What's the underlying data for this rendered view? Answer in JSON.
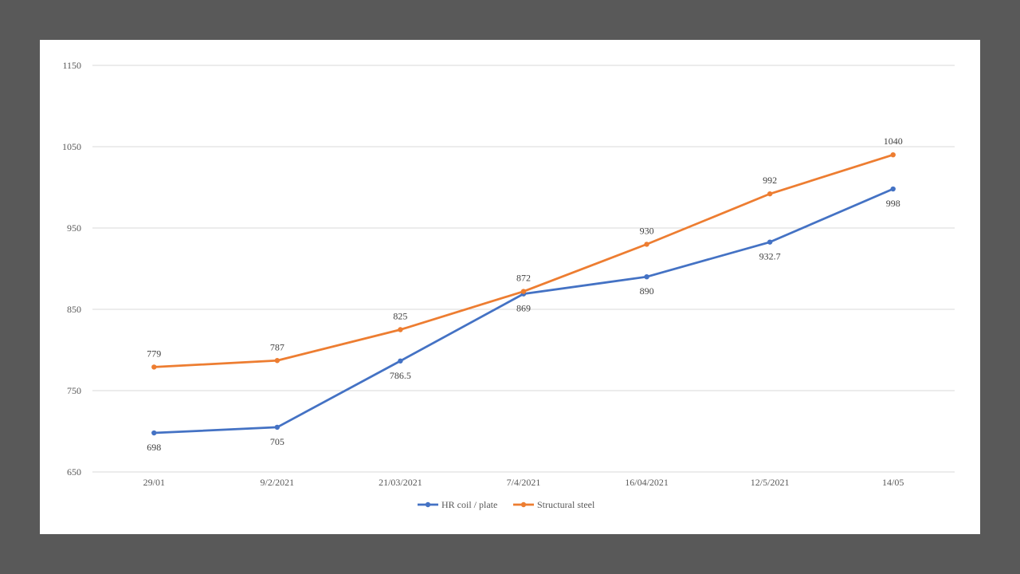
{
  "chart_data": {
    "type": "line",
    "title": "",
    "xlabel": "",
    "ylabel": "",
    "categories": [
      "29/01",
      "9/2/2021",
      "21/03/2021",
      "7/4/2021",
      "16/04/2021",
      "12/5/2021",
      "14/05"
    ],
    "ylim": [
      650,
      1150
    ],
    "yticks": [
      650,
      750,
      850,
      950,
      1050,
      1150
    ],
    "grid": true,
    "legend": "bottom",
    "series": [
      {
        "name": "HR coil / plate",
        "color": "#4472c4",
        "values": [
          698,
          705,
          786.5,
          869,
          890,
          932.7,
          998
        ],
        "labels": [
          "698",
          "705",
          "786.5",
          "869",
          "890",
          "932.7",
          "998"
        ],
        "label_position": "below"
      },
      {
        "name": "Structural steel",
        "color": "#ed7d31",
        "values": [
          779,
          787,
          825,
          872,
          930,
          992,
          1040
        ],
        "labels": [
          "779",
          "787",
          "825",
          "872",
          "930",
          "992",
          "1040"
        ],
        "label_position": "above"
      }
    ]
  }
}
